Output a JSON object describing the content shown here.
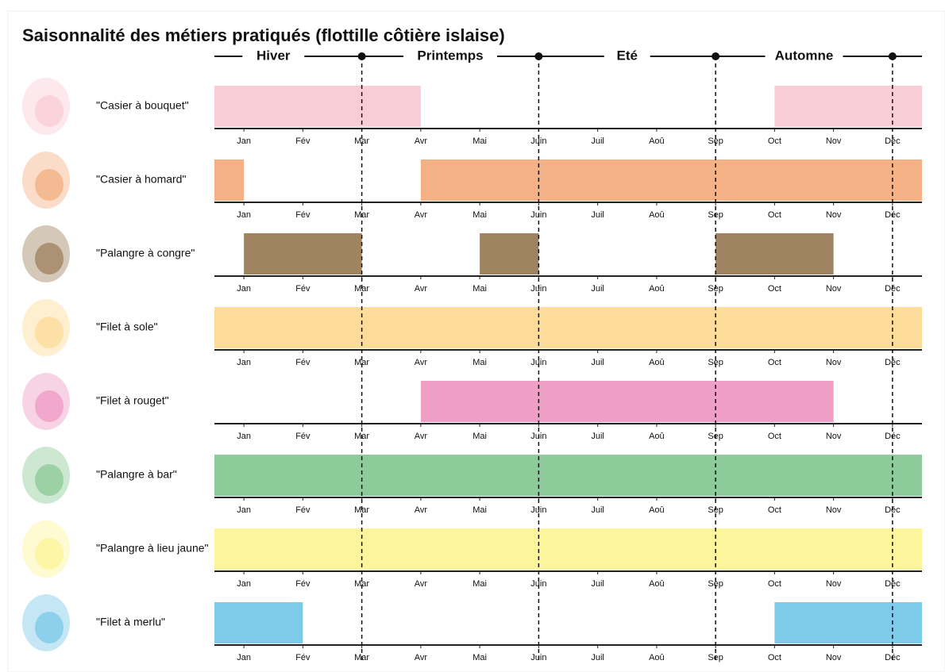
{
  "chart_data": {
    "type": "gantt",
    "title": "Saisonnalité des métiers pratiqués (flottille côtière islaise)",
    "xlim": [
      -0.5,
      11.5
    ],
    "xticks": [
      {
        "value": 0,
        "label": "Jan"
      },
      {
        "value": 1,
        "label": "Fév"
      },
      {
        "value": 2,
        "label": "Mar"
      },
      {
        "value": 3,
        "label": "Avr"
      },
      {
        "value": 4,
        "label": "Mai"
      },
      {
        "value": 5,
        "label": "Juin"
      },
      {
        "value": 6,
        "label": "Juil"
      },
      {
        "value": 7,
        "label": "Aoû"
      },
      {
        "value": 8,
        "label": "Sep"
      },
      {
        "value": 9,
        "label": "Oct"
      },
      {
        "value": 10,
        "label": "Nov"
      },
      {
        "value": 11,
        "label": "Déc"
      }
    ],
    "seasons": [
      "Hiver",
      "Printemps",
      "Eté",
      "Automne"
    ],
    "season_boundaries": [
      2,
      5,
      8,
      11
    ],
    "rows": [
      {
        "name": "\"Casier à bouquet\"",
        "color": "#f9cdd6",
        "periods": [
          [
            -0.5,
            3
          ],
          [
            9,
            11.5
          ]
        ]
      },
      {
        "name": "\"Casier à homard\"",
        "color": "#f3b185",
        "periods": [
          [
            -0.5,
            0
          ],
          [
            3,
            11.5
          ]
        ]
      },
      {
        "name": "\"Palangre à congre\"",
        "color": "#a08462",
        "periods": [
          [
            0,
            2
          ],
          [
            4,
            5
          ],
          [
            8,
            10
          ]
        ]
      },
      {
        "name": "\"Filet à sole\"",
        "color": "#fddc9a",
        "periods": [
          [
            -0.5,
            11.5
          ]
        ]
      },
      {
        "name": "\"Filet à rouget\"",
        "color": "#ef9ec6",
        "periods": [
          [
            3,
            10
          ]
        ]
      },
      {
        "name": "\"Palangre à bar\"",
        "color": "#8ecb9a",
        "periods": [
          [
            -0.5,
            11.5
          ]
        ]
      },
      {
        "name": "\"Palangre à lieu jaune\"",
        "color": "#fdf59c",
        "periods": [
          [
            -0.5,
            11.5
          ]
        ]
      },
      {
        "name": "\"Filet à merlu\"",
        "color": "#7ecae9",
        "periods": [
          [
            -0.5,
            1
          ],
          [
            9,
            11.5
          ]
        ]
      }
    ]
  }
}
